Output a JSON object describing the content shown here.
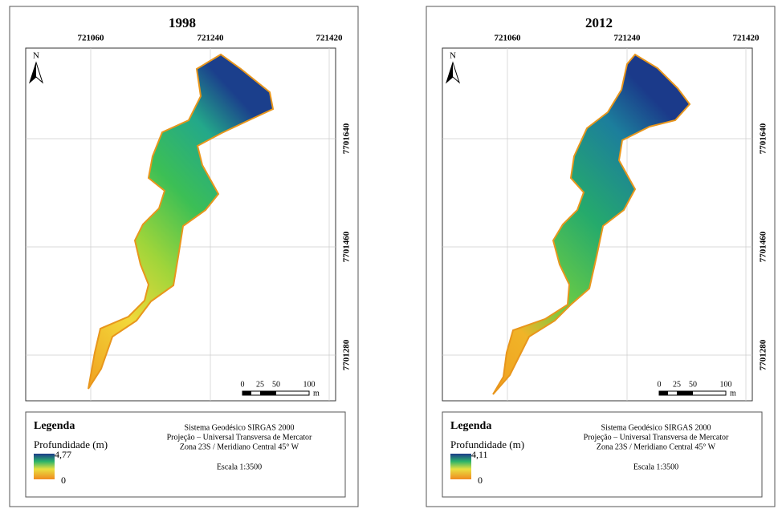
{
  "panels": [
    {
      "title": "1998",
      "x_labels": [
        "721060",
        "721240",
        "721420"
      ],
      "y_labels": [
        "7701640",
        "7701460",
        "7701280"
      ],
      "north": "N",
      "scale_labels": [
        "0",
        "25",
        "50",
        "100",
        "m"
      ],
      "legend": {
        "title": "Legenda",
        "subtitle": "Profundidade (m)",
        "max": "4,77",
        "min": "0"
      },
      "info": [
        "Sistema Geodésico SIRGAS 2000",
        "Projeção – Universal Transversa de Mercator",
        "Zona 23S / Meridiano Central 45° W",
        "Escala 1:3500"
      ]
    },
    {
      "title": "2012",
      "x_labels": [
        "721060",
        "721240",
        "721420"
      ],
      "y_labels": [
        "7701640",
        "7701460",
        "7701280"
      ],
      "north": "N",
      "scale_labels": [
        "0",
        "25",
        "50",
        "100",
        "m"
      ],
      "legend": {
        "title": "Legenda",
        "subtitle": "Profundidade (m)",
        "max": "4,11",
        "min": "0"
      },
      "info": [
        "Sistema Geodésico SIRGAS 2000",
        "Projeção – Universal Transversa de Mercator",
        "Zona 23S / Meridiano Central 45° W",
        "Escala 1:3500"
      ]
    }
  ]
}
